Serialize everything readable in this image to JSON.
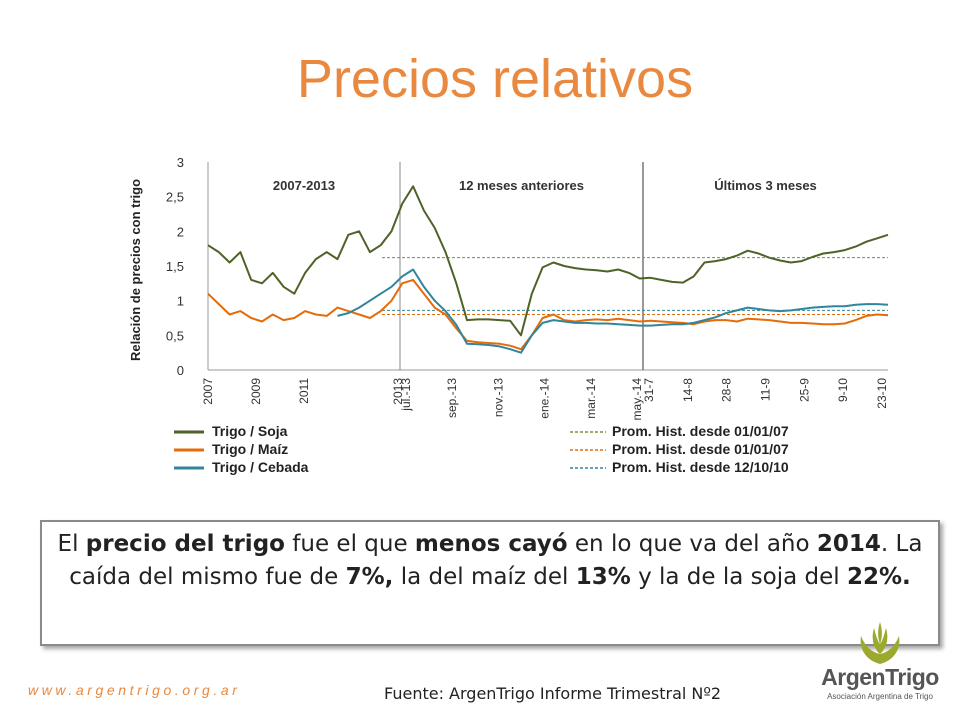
{
  "slide": {
    "title": "Precios relativos",
    "website": "www.argentrigo.org.ar",
    "source": "Fuente: ArgenTrigo Informe Trimestral Nº2",
    "logo_name": "ArgenTrigo",
    "logo_subtitle": "Asociación Argentina de Trigo",
    "note": {
      "p1": "El ",
      "b1": "precio del trigo",
      "p2": " fue el que ",
      "b2": "menos cayó",
      "p3": " en lo que va del año ",
      "b3": "2014",
      "p4": ". La caída del mismo fue de ",
      "b4": "7%,",
      "p5": " la del maíz del ",
      "b5": "13%",
      "p6": " y la de la soja del ",
      "b6": "22%."
    }
  },
  "chart_data": {
    "type": "line",
    "ylabel": "Relación de precios con trigo",
    "ylim": [
      0,
      3
    ],
    "yticks": [
      "0",
      "0,5",
      "1",
      "1,5",
      "2",
      "2,5",
      "3"
    ],
    "grid": false,
    "legend_position": "bottom",
    "panels": [
      {
        "label": "2007-2013",
        "xticks": [
          "2007",
          "2009",
          "2011",
          "2013"
        ]
      },
      {
        "label": "12 meses anteriores",
        "xticks": [
          "jul.-13",
          "sep.-13",
          "nov.-13",
          "ene.-14",
          "mar.-14",
          "may.-14"
        ]
      },
      {
        "label": "Últimos 3 meses",
        "xticks": [
          "31-7",
          "14-8",
          "28-8",
          "11-9",
          "25-9",
          "9-10",
          "23-10"
        ]
      }
    ],
    "series": [
      {
        "name": "Trigo / Soja",
        "color": "#4F6228",
        "values": [
          1.8,
          1.7,
          1.55,
          1.7,
          1.3,
          1.25,
          1.4,
          1.2,
          1.1,
          1.4,
          1.6,
          1.7,
          1.6,
          1.95,
          2.0,
          1.7,
          1.8,
          2.0,
          2.4,
          2.65,
          2.3,
          2.05,
          1.7,
          1.25,
          0.72,
          0.73,
          0.73,
          0.72,
          0.71,
          0.5,
          1.1,
          1.48,
          1.55,
          1.5,
          1.47,
          1.45,
          1.44,
          1.42,
          1.45,
          1.4,
          1.32,
          1.33,
          1.3,
          1.27,
          1.26,
          1.35,
          1.55,
          1.57,
          1.6,
          1.65,
          1.72,
          1.68,
          1.62,
          1.58,
          1.55,
          1.57,
          1.63,
          1.68,
          1.7,
          1.73,
          1.78,
          1.85,
          1.9,
          1.95
        ]
      },
      {
        "name": "Trigo / Maíz",
        "color": "#E46C0A",
        "values": [
          1.1,
          0.95,
          0.8,
          0.85,
          0.75,
          0.7,
          0.8,
          0.72,
          0.75,
          0.85,
          0.8,
          0.78,
          0.9,
          0.85,
          0.8,
          0.75,
          0.85,
          1.0,
          1.25,
          1.3,
          1.1,
          0.9,
          0.8,
          0.6,
          0.42,
          0.4,
          0.39,
          0.38,
          0.35,
          0.3,
          0.5,
          0.75,
          0.8,
          0.72,
          0.7,
          0.72,
          0.73,
          0.72,
          0.74,
          0.72,
          0.7,
          0.71,
          0.7,
          0.69,
          0.68,
          0.66,
          0.7,
          0.72,
          0.72,
          0.7,
          0.74,
          0.73,
          0.72,
          0.7,
          0.68,
          0.68,
          0.67,
          0.66,
          0.66,
          0.67,
          0.72,
          0.78,
          0.8,
          0.79
        ]
      },
      {
        "name": "Trigo / Cebada",
        "color": "#31859C",
        "values": [
          null,
          null,
          null,
          null,
          null,
          null,
          null,
          null,
          null,
          null,
          null,
          null,
          0.78,
          0.82,
          0.9,
          1.0,
          1.1,
          1.2,
          1.35,
          1.45,
          1.2,
          1.0,
          0.85,
          0.65,
          0.38,
          0.37,
          0.36,
          0.34,
          0.3,
          0.25,
          0.5,
          0.68,
          0.72,
          0.7,
          0.68,
          0.68,
          0.67,
          0.67,
          0.66,
          0.65,
          0.64,
          0.64,
          0.65,
          0.66,
          0.66,
          0.68,
          0.72,
          0.76,
          0.82,
          0.86,
          0.9,
          0.88,
          0.86,
          0.85,
          0.86,
          0.88,
          0.9,
          0.91,
          0.92,
          0.92,
          0.94,
          0.95,
          0.95,
          0.94
        ]
      }
    ],
    "averages": [
      {
        "name": "Prom. Hist. desde 01/01/07",
        "value": 1.62,
        "color": "#76923C"
      },
      {
        "name": "Prom. Hist. desde 01/01/07",
        "value": 0.8,
        "color": "#E46C0A"
      },
      {
        "name": "Prom. Hist. desde 12/10/10",
        "value": 0.86,
        "color": "#31859C"
      }
    ]
  }
}
